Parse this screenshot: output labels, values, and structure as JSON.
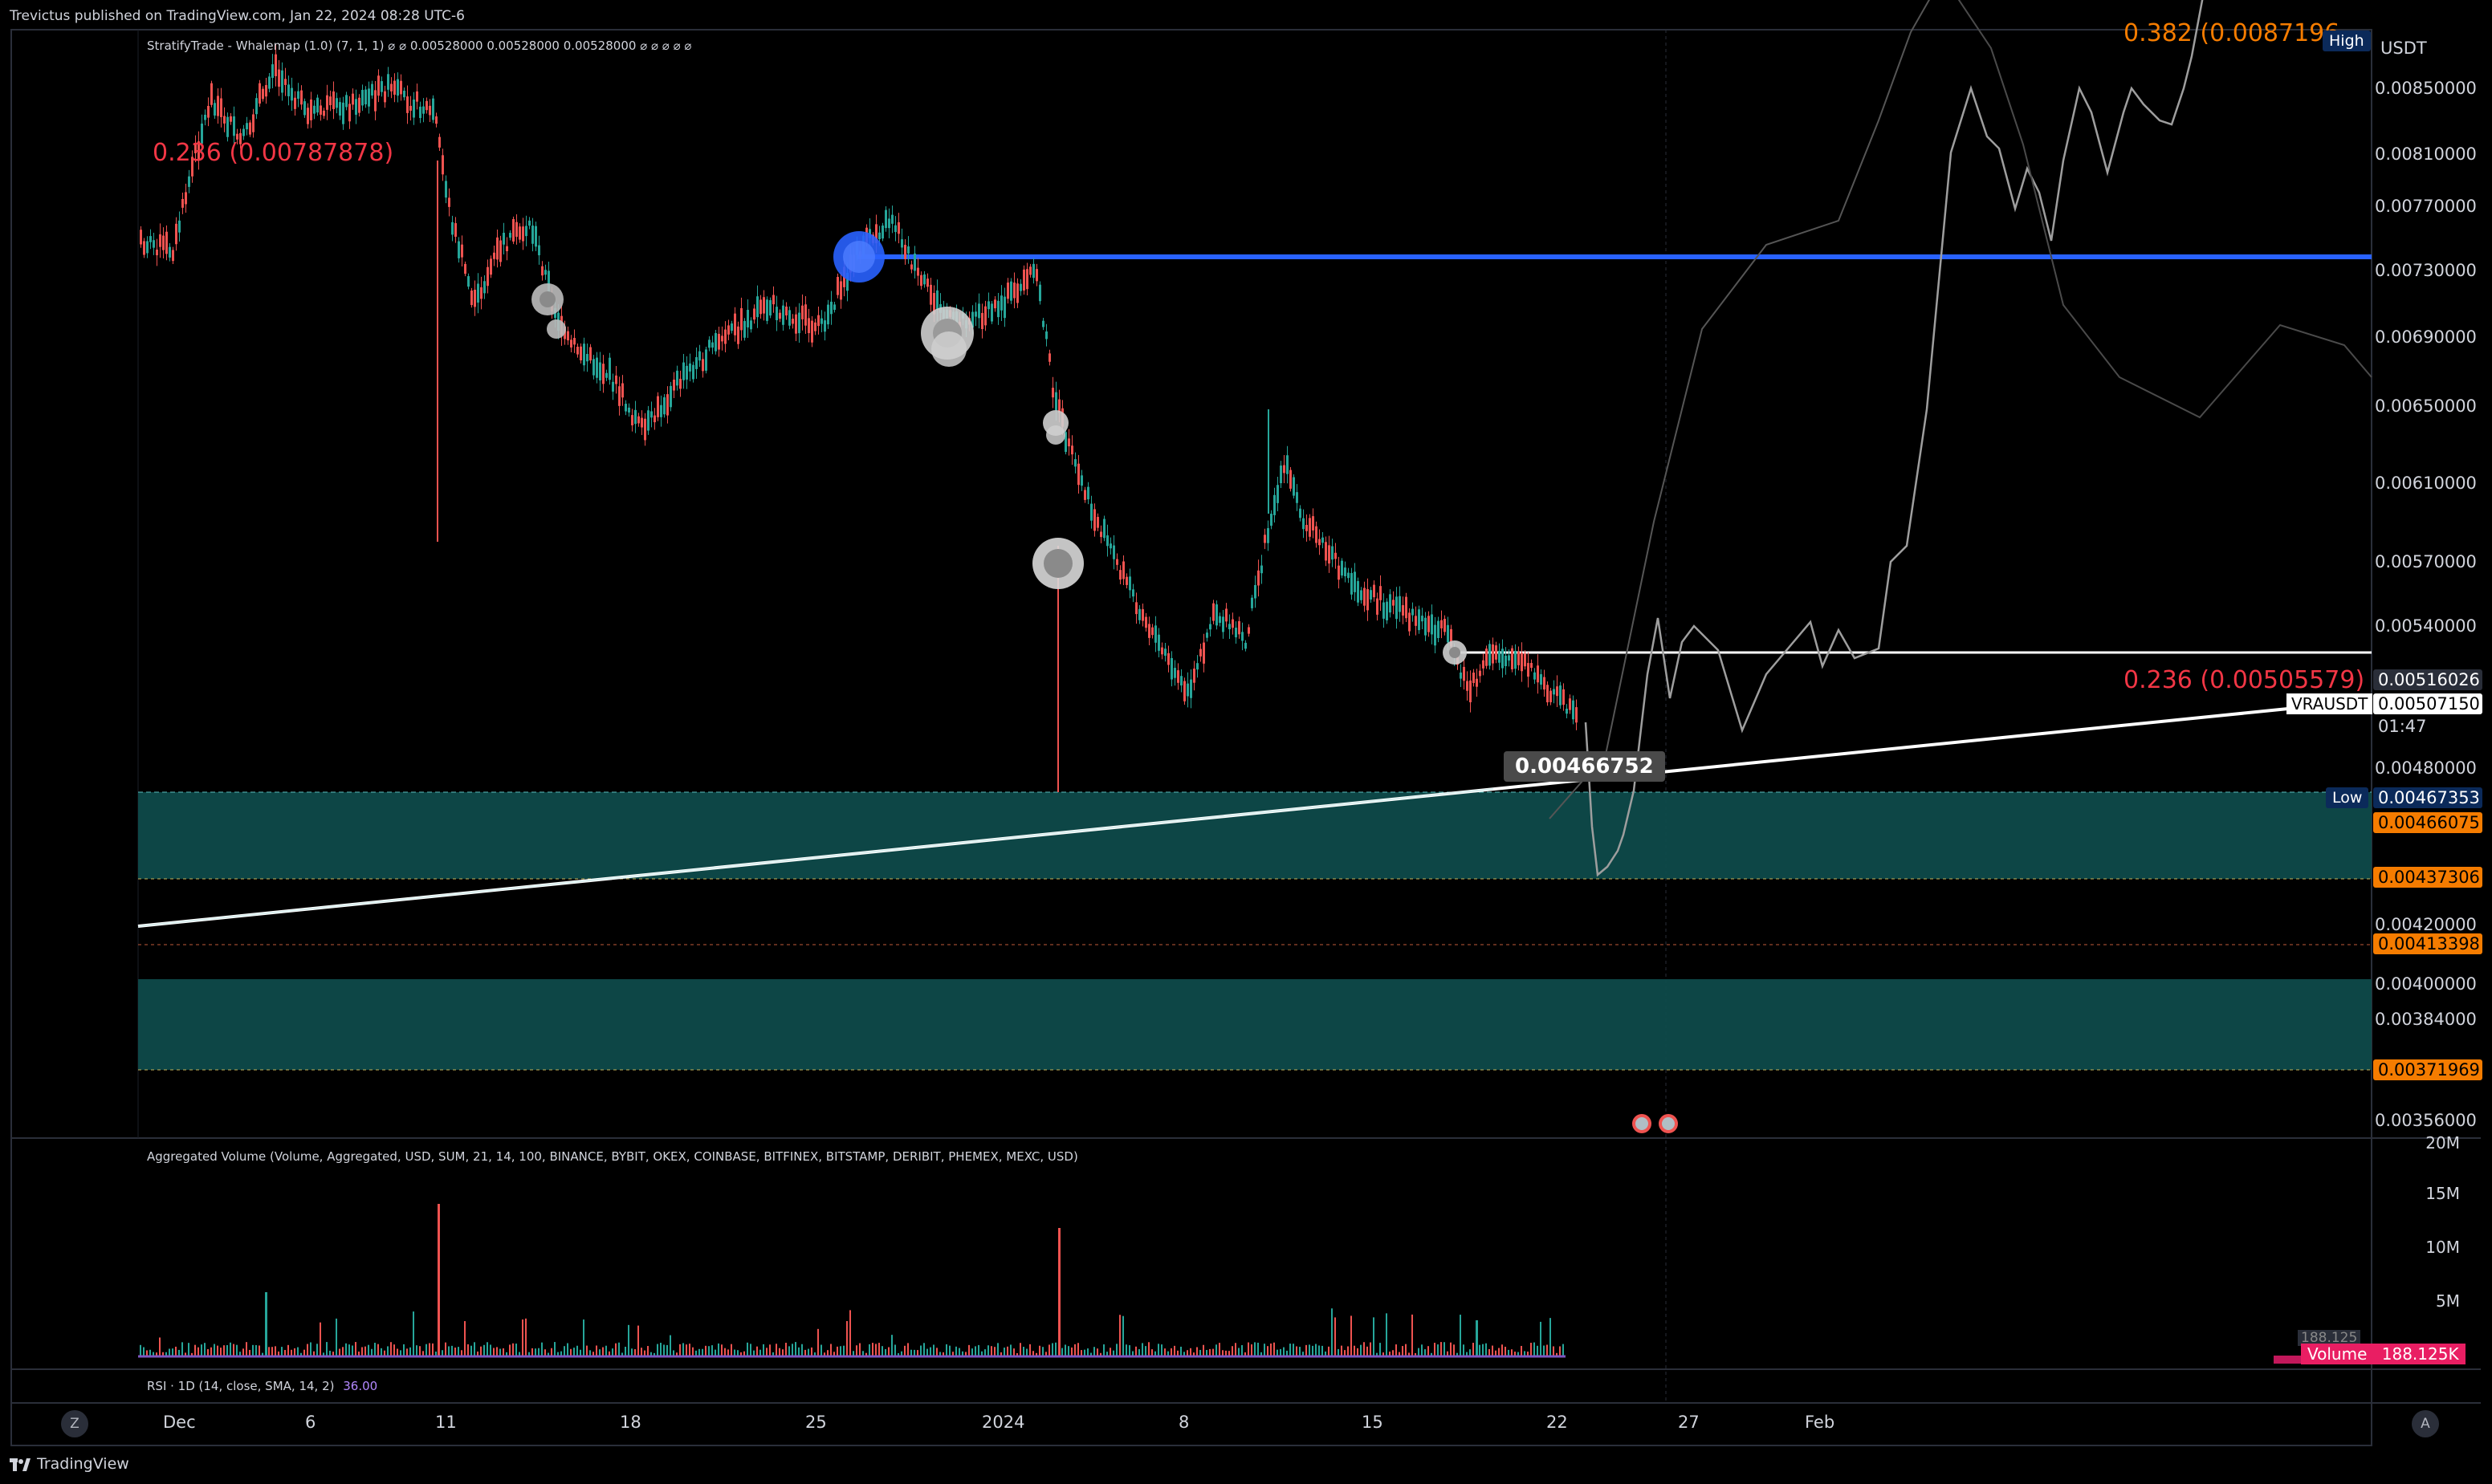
{
  "caption": "Trevictus published on TradingView.com, Jan 22, 2024 08:28 UTC-6",
  "indicator_header": {
    "name": "StratifyTrade - Whalemap (1.0) (7, 1, 1)",
    "symbols": "⌀ ⌀",
    "values": "0.00528000  0.00528000  0.00528000",
    "trailing": "⌀ ⌀ ⌀ ⌀ ⌀"
  },
  "volume_header": "Aggregated Volume (Volume, Aggregated, USD, SUM, 21, 14, 100, BINANCE, BYBIT, OKEX, COINBASE, BITFINEX, BITSTAMP, DERIBIT, PHEMEX, MEXC, USD)",
  "rsi_header": {
    "text": "RSI · 1D (14, close, SMA, 14, 2)",
    "value": "36.00"
  },
  "currency": "USDT",
  "price_axis": [
    "0.00850000",
    "0.00810000",
    "0.00770000",
    "0.00730000",
    "0.00690000",
    "0.00650000",
    "0.00610000",
    "0.00570000",
    "0.00540000",
    "0.00480000",
    "0.00420000",
    "0.00400000",
    "0.00384000",
    "0.00356000"
  ],
  "price_tags": {
    "p1": "0.00516026",
    "symbol": "VRAUSDT",
    "last": "0.00507150",
    "countdown": "01:47",
    "low_value": "0.00467353",
    "z1_top": "0.00466075",
    "z1_bottom": "0.00437306",
    "mid": "0.00413398",
    "z2_bottom": "0.00371969"
  },
  "labels": {
    "high": "High",
    "low": "Low",
    "fib_top": "0.382 (0.0087196",
    "fib_left": "0.236 (0.00787878)",
    "fib_right": "0.236 (0.00505579)",
    "trend_value": "0.00466752"
  },
  "volume_axis": [
    "20M",
    "15M",
    "10M",
    "5M"
  ],
  "volume_tag": {
    "label": "Volume",
    "value": "188.125K",
    "ghost": "188.125"
  },
  "time_axis": [
    "Dec",
    "6",
    "11",
    "18",
    "25",
    "2024",
    "8",
    "15",
    "22",
    "27",
    "Feb"
  ],
  "footer": {
    "brand": "TradingView",
    "left_btn": "Z",
    "right_btn": "A"
  },
  "colors": {
    "up": "#26a69a",
    "down": "#ef5350",
    "zone": "#0e4a4a",
    "blue_line": "#2962ff",
    "fib_red": "#f23645",
    "fib_orange": "#f57c00"
  }
}
